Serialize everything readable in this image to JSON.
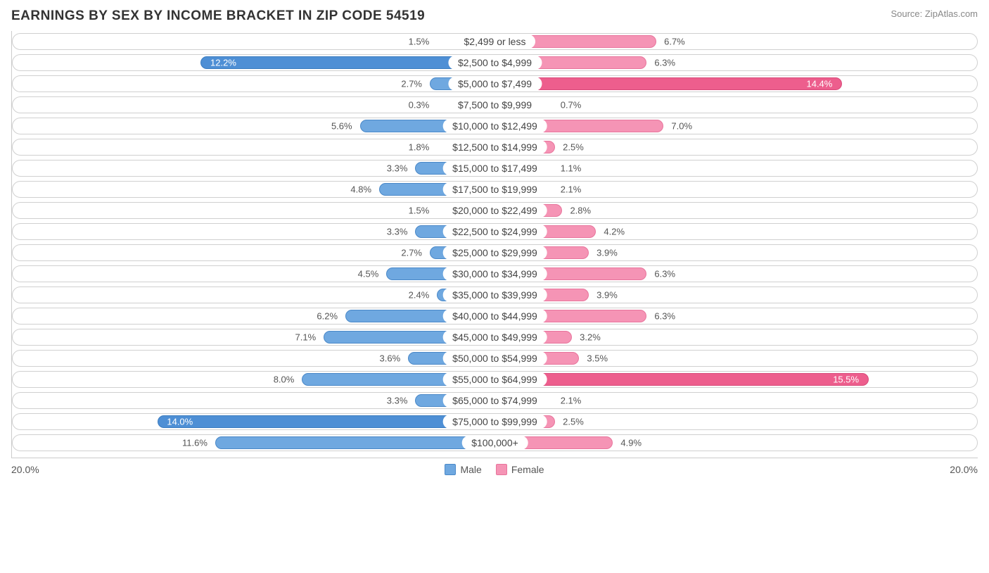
{
  "title": "EARNINGS BY SEX BY INCOME BRACKET IN ZIP CODE 54519",
  "source": "Source: ZipAtlas.com",
  "chart": {
    "type": "diverging-bar",
    "max_pct": 20.0,
    "axis_label_left": "20.0%",
    "axis_label_right": "20.0%",
    "male_fill": "#6fa8e0",
    "male_border": "#4a88c8",
    "male_highlight_fill": "#4e8fd5",
    "male_highlight_border": "#3a7cc0",
    "female_fill": "#f594b5",
    "female_border": "#e8749c",
    "female_highlight_fill": "#ed5e8d",
    "female_highlight_border": "#d84a7a",
    "row_border": "#d0d0d0",
    "text_color": "#555555",
    "categories": [
      {
        "label": "$2,499 or less",
        "male": 1.5,
        "female": 6.7,
        "m_hl": false,
        "f_hl": false
      },
      {
        "label": "$2,500 to $4,999",
        "male": 12.2,
        "female": 6.3,
        "m_hl": true,
        "f_hl": false
      },
      {
        "label": "$5,000 to $7,499",
        "male": 2.7,
        "female": 14.4,
        "m_hl": false,
        "f_hl": true
      },
      {
        "label": "$7,500 to $9,999",
        "male": 0.3,
        "female": 0.7,
        "m_hl": false,
        "f_hl": false
      },
      {
        "label": "$10,000 to $12,499",
        "male": 5.6,
        "female": 7.0,
        "m_hl": false,
        "f_hl": false
      },
      {
        "label": "$12,500 to $14,999",
        "male": 1.8,
        "female": 2.5,
        "m_hl": false,
        "f_hl": false
      },
      {
        "label": "$15,000 to $17,499",
        "male": 3.3,
        "female": 1.1,
        "m_hl": false,
        "f_hl": false
      },
      {
        "label": "$17,500 to $19,999",
        "male": 4.8,
        "female": 2.1,
        "m_hl": false,
        "f_hl": false
      },
      {
        "label": "$20,000 to $22,499",
        "male": 1.5,
        "female": 2.8,
        "m_hl": false,
        "f_hl": false
      },
      {
        "label": "$22,500 to $24,999",
        "male": 3.3,
        "female": 4.2,
        "m_hl": false,
        "f_hl": false
      },
      {
        "label": "$25,000 to $29,999",
        "male": 2.7,
        "female": 3.9,
        "m_hl": false,
        "f_hl": false
      },
      {
        "label": "$30,000 to $34,999",
        "male": 4.5,
        "female": 6.3,
        "m_hl": false,
        "f_hl": false
      },
      {
        "label": "$35,000 to $39,999",
        "male": 2.4,
        "female": 3.9,
        "m_hl": false,
        "f_hl": false
      },
      {
        "label": "$40,000 to $44,999",
        "male": 6.2,
        "female": 6.3,
        "m_hl": false,
        "f_hl": false
      },
      {
        "label": "$45,000 to $49,999",
        "male": 7.1,
        "female": 3.2,
        "m_hl": false,
        "f_hl": false
      },
      {
        "label": "$50,000 to $54,999",
        "male": 3.6,
        "female": 3.5,
        "m_hl": false,
        "f_hl": false
      },
      {
        "label": "$55,000 to $64,999",
        "male": 8.0,
        "female": 15.5,
        "m_hl": false,
        "f_hl": true
      },
      {
        "label": "$65,000 to $74,999",
        "male": 3.3,
        "female": 2.1,
        "m_hl": false,
        "f_hl": false
      },
      {
        "label": "$75,000 to $99,999",
        "male": 14.0,
        "female": 2.5,
        "m_hl": true,
        "f_hl": false
      },
      {
        "label": "$100,000+",
        "male": 11.6,
        "female": 4.9,
        "m_hl": false,
        "f_hl": false
      }
    ],
    "legend": {
      "male": "Male",
      "female": "Female"
    }
  }
}
